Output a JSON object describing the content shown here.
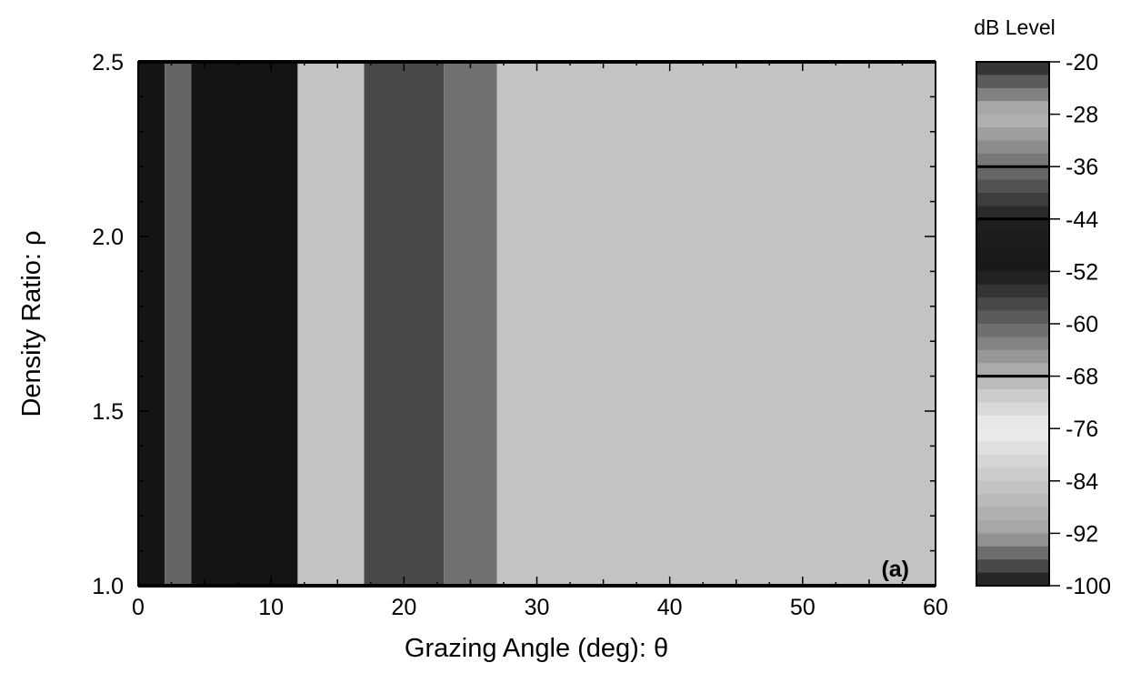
{
  "chart_data": {
    "type": "heatmap",
    "xlabel": "Grazing Angle (deg):  θ",
    "ylabel": "Density Ratio:  ρ",
    "xlim": [
      0,
      60
    ],
    "ylim": [
      1.0,
      2.5
    ],
    "x_ticks": [
      0,
      10,
      20,
      30,
      40,
      50,
      60
    ],
    "x_tick_labels": [
      "0",
      "10",
      "20",
      "30",
      "40",
      "50",
      "60"
    ],
    "y_ticks": [
      1.0,
      1.5,
      2.0,
      2.5
    ],
    "y_tick_labels": [
      "1.0",
      "1.5",
      "2.0",
      "2.5"
    ],
    "panel_label": "(a)",
    "colorbar": {
      "title": "dB Level",
      "range": [
        -100,
        -20
      ],
      "ticks": [
        -20,
        -28,
        -36,
        -44,
        -52,
        -60,
        -68,
        -76,
        -84,
        -92,
        -100
      ],
      "tick_labels": [
        "-20",
        "-28",
        "-36",
        "-44",
        "-52",
        "-60",
        "-68",
        "-76",
        "-84",
        "-92",
        "-100"
      ],
      "contour_levels": [
        -36,
        -44,
        -68
      ]
    },
    "region_levels": [
      {
        "theta_range": [
          0,
          2
        ],
        "db_level": -100
      },
      {
        "theta_range": [
          2,
          4
        ],
        "db_level": -60
      },
      {
        "theta_range": [
          4,
          12
        ],
        "db_level": -100
      },
      {
        "theta_range": [
          12,
          17
        ],
        "db_level": -70
      },
      {
        "theta_range": [
          17,
          23
        ],
        "db_level": -40
      },
      {
        "theta_range": [
          23,
          27
        ],
        "db_level": -36
      },
      {
        "theta_range": [
          27,
          60
        ],
        "db_level": -70
      }
    ],
    "grid": false
  },
  "colors": {
    "background": "#ffffff",
    "foreground": "#000000"
  }
}
